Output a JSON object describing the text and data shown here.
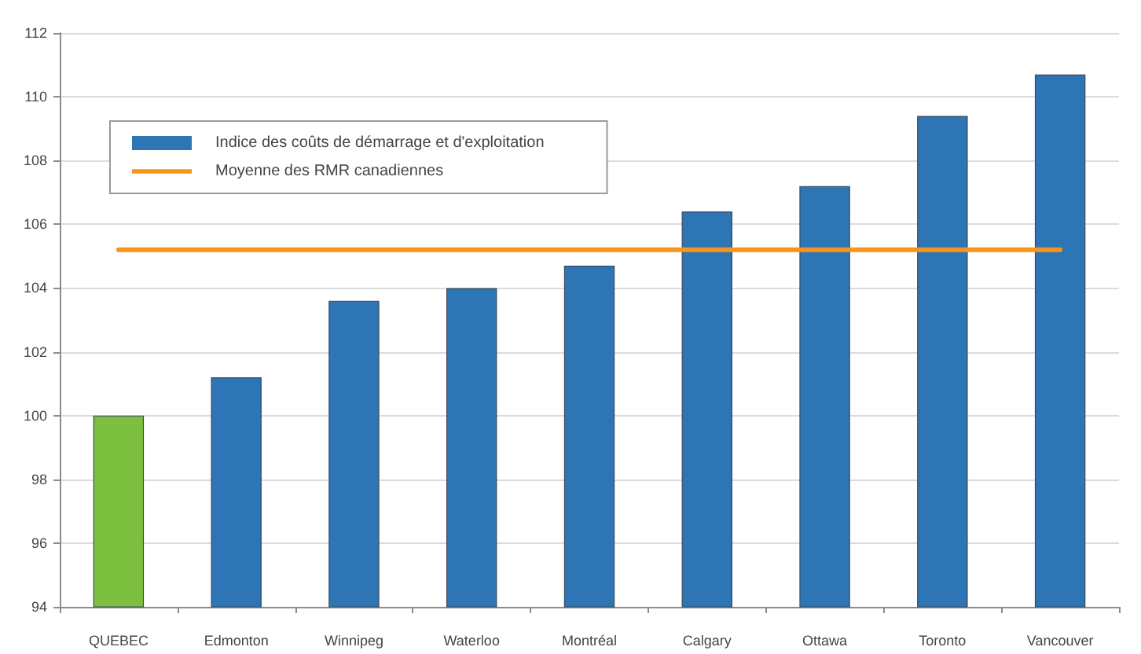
{
  "chart_data": {
    "type": "bar",
    "categories": [
      "QUEBEC",
      "Edmonton",
      "Winnipeg",
      "Waterloo",
      "Montréal",
      "Calgary",
      "Ottawa",
      "Toronto",
      "Vancouver"
    ],
    "series": [
      {
        "name": "Indice des coûts de démarrage et d'exploitation",
        "color": "#2e75b6",
        "colors": [
          "#7dbf3e",
          "#2e75b6",
          "#2e75b6",
          "#2e75b6",
          "#2e75b6",
          "#2e75b6",
          "#2e75b6",
          "#2e75b6",
          "#2e75b6"
        ],
        "values": [
          100.0,
          101.2,
          103.6,
          104.0,
          104.7,
          106.4,
          107.2,
          109.4,
          110.7
        ]
      },
      {
        "name": "Moyenne des RMR canadiennes",
        "type": "line",
        "color": "#f7941d",
        "values": [
          105.2,
          105.2,
          105.2,
          105.2,
          105.2,
          105.2,
          105.2,
          105.2,
          105.2
        ]
      }
    ],
    "ylim": [
      94,
      112
    ],
    "yticks": [
      94,
      96,
      98,
      100,
      102,
      104,
      106,
      108,
      110,
      112
    ],
    "grid": "y",
    "legend": "top left",
    "marker": "none",
    "line_style": "solid"
  }
}
